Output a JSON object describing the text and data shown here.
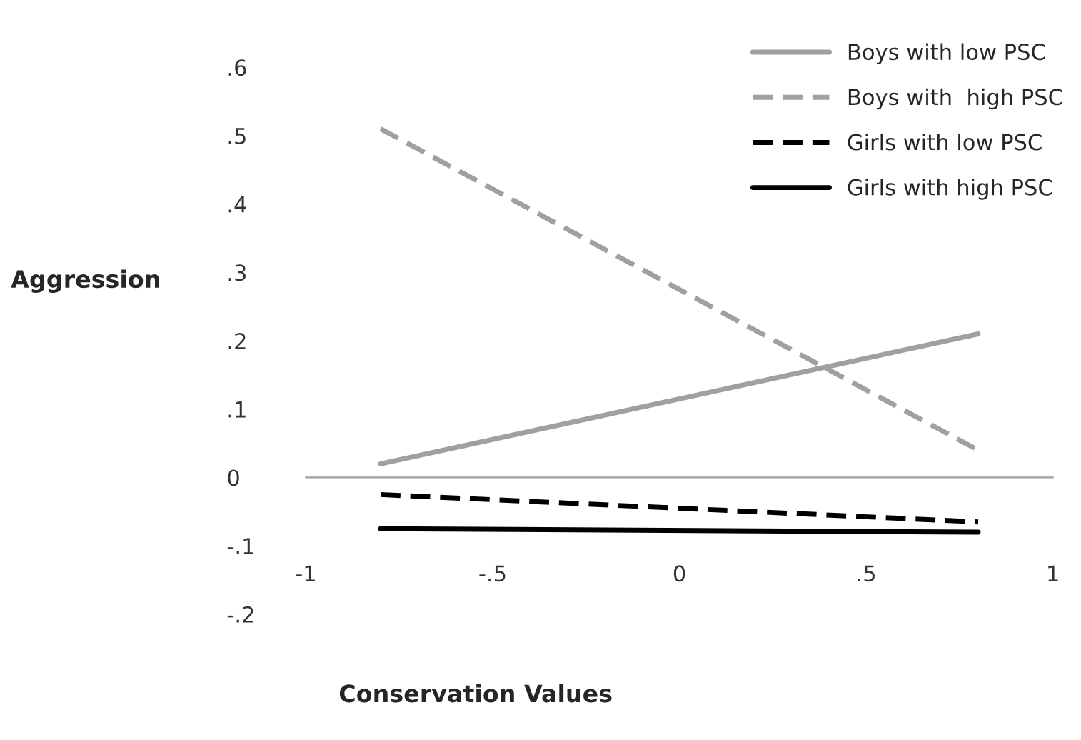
{
  "chart_data": {
    "type": "line",
    "xlabel": "Conservation Values",
    "ylabel": "Aggression",
    "x": [
      -0.8,
      0.8
    ],
    "xlim": [
      -1,
      1
    ],
    "xticks": [
      {
        "value": -1,
        "label": "-1"
      },
      {
        "value": -0.5,
        "label": "-.5"
      },
      {
        "value": 0,
        "label": "0"
      },
      {
        "value": 0.5,
        "label": ".5"
      },
      {
        "value": 1,
        "label": "1"
      }
    ],
    "ylim": [
      -0.2,
      0.6
    ],
    "yticks": [
      {
        "value": -0.2,
        "label": "-.2"
      },
      {
        "value": -0.1,
        "label": "-.1"
      },
      {
        "value": 0,
        "label": "0"
      },
      {
        "value": 0.1,
        "label": ".1"
      },
      {
        "value": 0.2,
        "label": ".2"
      },
      {
        "value": 0.3,
        "label": ".3"
      },
      {
        "value": 0.4,
        "label": ".4"
      },
      {
        "value": 0.5,
        "label": ".5"
      },
      {
        "value": 0.6,
        "label": ".6"
      }
    ],
    "legend": "top right",
    "marker": "none",
    "series": [
      {
        "name": "Boys with low PSC",
        "color": "#a0a0a0",
        "line_style": "solid",
        "values": [
          0.02,
          0.21
        ]
      },
      {
        "name": "Boys with  high PSC",
        "color": "#a0a0a0",
        "line_style": "dashed",
        "values": [
          0.51,
          0.04
        ]
      },
      {
        "name": "Girls with low PSC",
        "color": "#000000",
        "line_style": "dashed",
        "values": [
          -0.025,
          -0.065
        ]
      },
      {
        "name": "Girls with high PSC",
        "color": "#000000",
        "line_style": "solid",
        "values": [
          -0.075,
          -0.08
        ]
      }
    ]
  }
}
